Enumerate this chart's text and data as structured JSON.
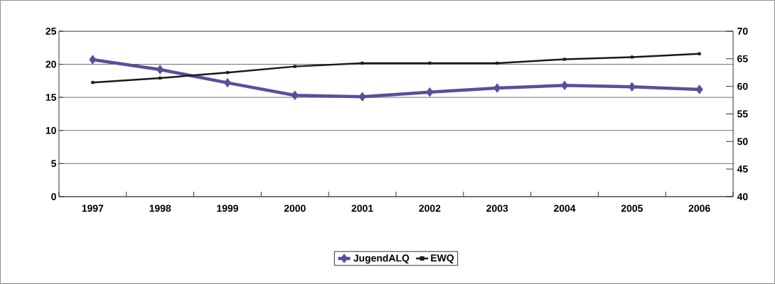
{
  "chart_data": {
    "type": "line",
    "categories": [
      "1997",
      "1998",
      "1999",
      "2000",
      "2001",
      "2002",
      "2003",
      "2004",
      "2005",
      "2006"
    ],
    "series": [
      {
        "name": "JugendALQ",
        "color": "#57509c",
        "marker": "diamond",
        "values": [
          20.7,
          19.2,
          17.2,
          15.3,
          15.1,
          15.8,
          16.4,
          16.8,
          16.6,
          16.2
        ]
      },
      {
        "name": "EWQ",
        "color": "#1a1a1a",
        "marker": "square",
        "axis": "y2",
        "values": [
          60.7,
          61.5,
          62.5,
          63.6,
          64.2,
          64.2,
          64.2,
          64.9,
          65.3,
          65.9
        ]
      }
    ],
    "ylim": [
      0,
      25
    ],
    "yticks": [
      0,
      5,
      10,
      15,
      20,
      25
    ],
    "y2lim": [
      40,
      70
    ],
    "y2ticks": [
      40,
      45,
      50,
      55,
      60,
      65,
      70
    ],
    "grid": "y",
    "legend": "bottom"
  }
}
